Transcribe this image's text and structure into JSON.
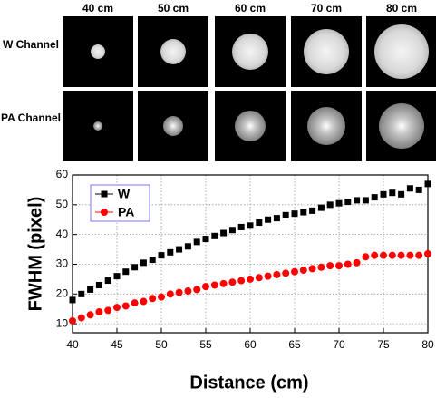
{
  "image_grid": {
    "columns": [
      "40 cm",
      "50 cm",
      "60 cm",
      "70 cm",
      "80 cm"
    ],
    "rows": [
      "W Channel",
      "PA Channel"
    ]
  },
  "chart_data": {
    "type": "scatter",
    "x": [
      40,
      41,
      42,
      43,
      44,
      45,
      46,
      47,
      48,
      49,
      50,
      51,
      52,
      53,
      54,
      55,
      56,
      57,
      58,
      59,
      60,
      61,
      62,
      63,
      64,
      65,
      66,
      67,
      68,
      69,
      70,
      71,
      72,
      73,
      74,
      75,
      76,
      77,
      78,
      79,
      80
    ],
    "series": [
      {
        "name": "W",
        "color": "#000000",
        "marker": "square",
        "values": [
          18,
          20,
          21.5,
          23,
          24.5,
          26,
          27.5,
          29,
          30.5,
          31.5,
          33,
          34,
          35,
          36,
          37.5,
          38.5,
          39.5,
          40.5,
          41.5,
          42.5,
          43,
          44,
          45,
          45.5,
          46.5,
          47,
          47.5,
          48,
          49,
          50,
          50.5,
          51,
          51.5,
          51.5,
          52.5,
          53.5,
          54,
          53.5,
          55.5,
          55,
          57
        ]
      },
      {
        "name": "PA",
        "color": "#ff0000",
        "marker": "circle",
        "values": [
          11,
          12,
          13,
          14,
          14.5,
          15.5,
          16,
          17,
          17.5,
          18.5,
          19,
          20,
          20.5,
          21,
          21.5,
          22.5,
          23,
          23.5,
          24,
          24.5,
          25,
          25.5,
          26,
          26.5,
          27,
          27.5,
          28,
          28.5,
          29,
          29.5,
          29.5,
          30,
          30.5,
          32.5,
          33,
          33,
          33,
          33,
          33,
          33,
          33.5
        ]
      }
    ],
    "xlabel": "Distance (cm)",
    "ylabel": "FWHM (pixel)",
    "xlim": [
      40,
      80
    ],
    "xticks": [
      40,
      45,
      50,
      55,
      60,
      65,
      70,
      75,
      80
    ],
    "ylim": [
      7,
      60
    ],
    "yticks": [
      10,
      20,
      30,
      40,
      50,
      60
    ],
    "grid": true,
    "legend": "upper-left"
  }
}
